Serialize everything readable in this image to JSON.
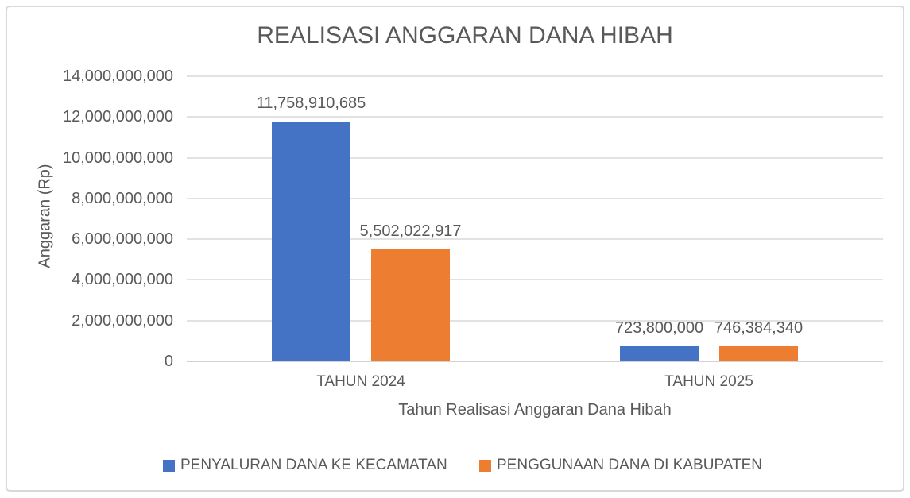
{
  "chart_data": {
    "type": "bar",
    "title": "REALISASI ANGGARAN DANA HIBAH",
    "xlabel": "Tahun Realisasi Anggaran Dana Hibah",
    "ylabel": "Anggaran (Rp)",
    "categories": [
      "TAHUN 2024",
      "TAHUN 2025"
    ],
    "series": [
      {
        "name": "PENYALURAN DANA KE KECAMATAN",
        "color": "#4472C4",
        "values": [
          11758910685,
          723800000
        ],
        "labels": [
          "11,758,910,685",
          "723,800,000"
        ]
      },
      {
        "name": "PENGGUNAAN DANA DI KABUPATEN",
        "color": "#ED7D31",
        "values": [
          5502022917,
          746384340
        ],
        "labels": [
          "5,502,022,917",
          "746,384,340"
        ]
      }
    ],
    "ylim": [
      0,
      14000000000
    ],
    "y_tick_interval": 2000000000,
    "y_tick_labels": [
      "0",
      "2,000,000,000",
      "4,000,000,000",
      "6,000,000,000",
      "8,000,000,000",
      "10,000,000,000",
      "12,000,000,000",
      "14,000,000,000"
    ],
    "grid": true,
    "legend_position": "bottom"
  },
  "colors": {
    "series_1": "#4472C4",
    "series_2": "#ED7D31",
    "text": "#595959",
    "gridline": "#E2E2E2",
    "chart_border": "#D9D9D9"
  }
}
